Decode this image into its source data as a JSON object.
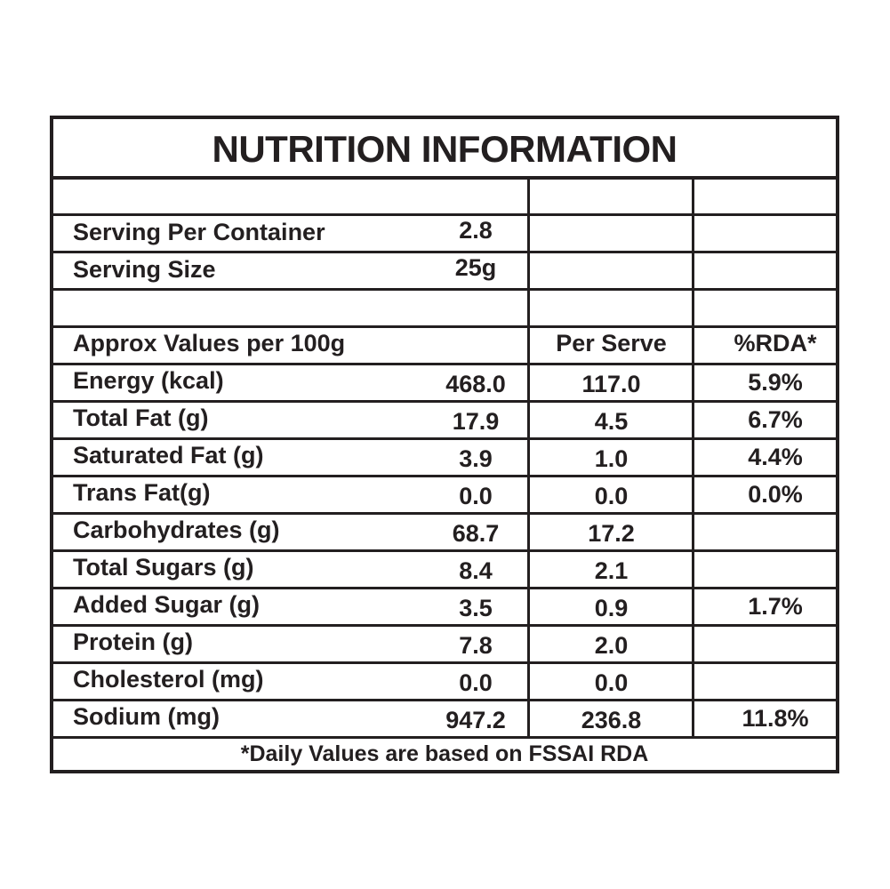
{
  "label": {
    "title": "NUTRITION INFORMATION",
    "serving": [
      {
        "label": "Serving Per Container",
        "value": "2.8"
      },
      {
        "label": "Serving Size",
        "value": "25g"
      }
    ],
    "header": {
      "col_label": "Approx Values per 100g",
      "col_serve": "Per Serve",
      "col_rda": "%RDA*"
    },
    "rows": [
      {
        "name": "Energy (kcal)",
        "per100": "468.0",
        "serve": "117.0",
        "rda": "5.9%"
      },
      {
        "name": "Total Fat (g)",
        "per100": "17.9",
        "serve": "4.5",
        "rda": "6.7%"
      },
      {
        "name": "Saturated Fat (g)",
        "per100": "3.9",
        "serve": "1.0",
        "rda": "4.4%"
      },
      {
        "name": "Trans Fat(g)",
        "per100": "0.0",
        "serve": "0.0",
        "rda": "0.0%"
      },
      {
        "name": "Carbohydrates (g)",
        "per100": "68.7",
        "serve": "17.2",
        "rda": ""
      },
      {
        "name": "Total Sugars (g)",
        "per100": "8.4",
        "serve": "2.1",
        "rda": ""
      },
      {
        "name": "Added Sugar (g)",
        "per100": "3.5",
        "serve": "0.9",
        "rda": "1.7%"
      },
      {
        "name": "Protein (g)",
        "per100": "7.8",
        "serve": "2.0",
        "rda": ""
      },
      {
        "name": "Cholesterol (mg)",
        "per100": "0.0",
        "serve": "0.0",
        "rda": ""
      },
      {
        "name": "Sodium (mg)",
        "per100": "947.2",
        "serve": "236.8",
        "rda": "11.8%"
      }
    ],
    "footnote": "*Daily Values are based on FSSAI RDA"
  },
  "colors": {
    "ink": "#231f20",
    "background": "#ffffff"
  }
}
